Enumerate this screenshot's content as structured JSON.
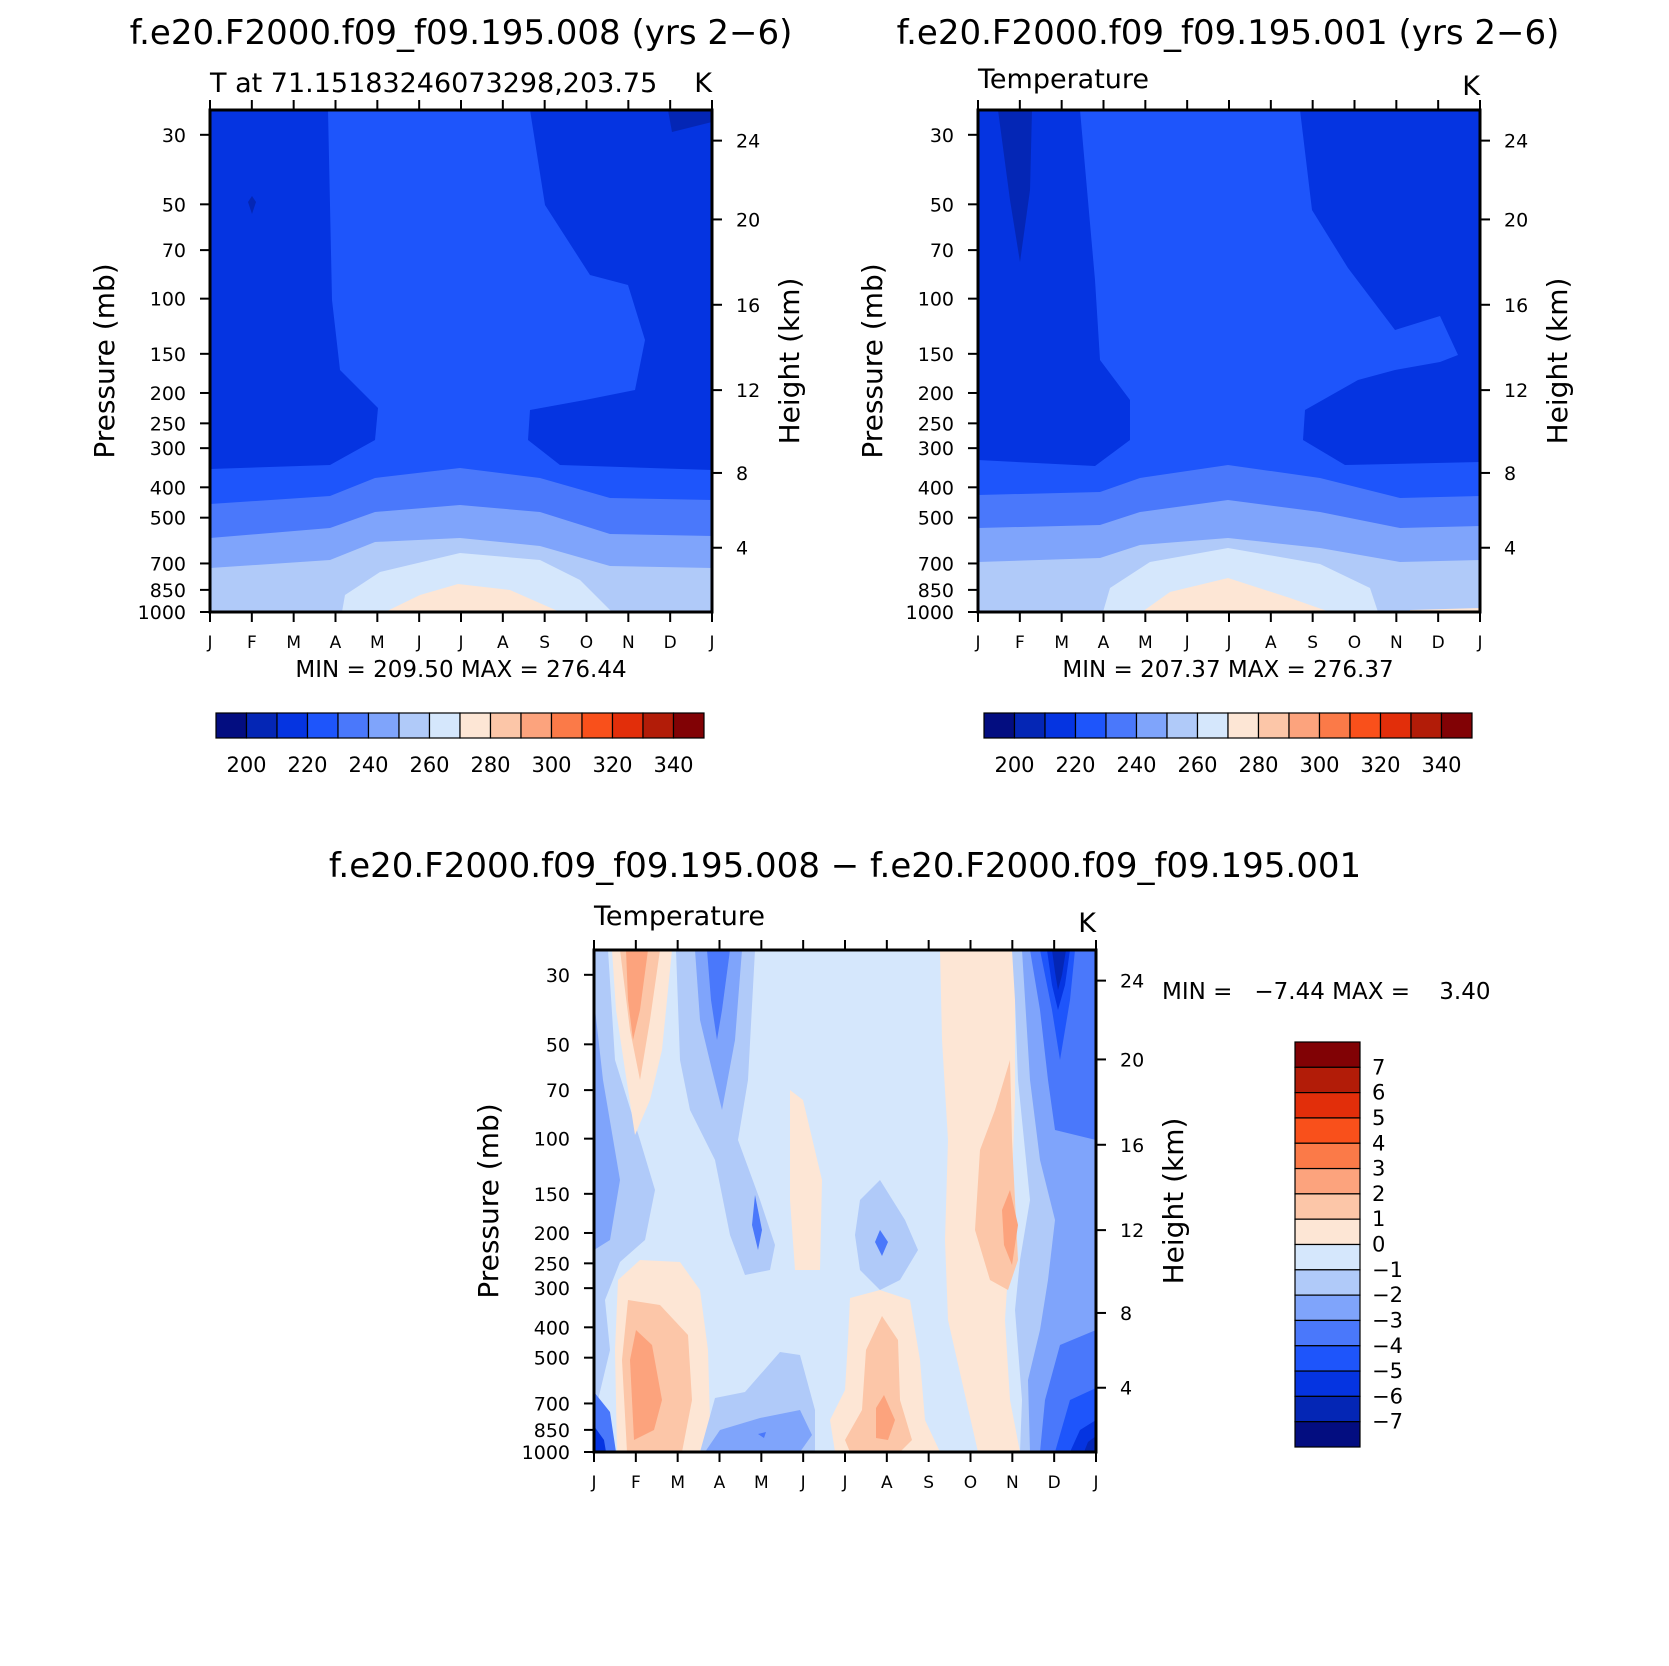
{
  "chart_data": [
    {
      "type": "heatmap",
      "title": "f.e20.F2000.f09_f09.195.008 (yrs 2−6)",
      "left_label": "T at 71.15183246073298,203.75",
      "right_label": "K",
      "ylabel": "Pressure (mb)",
      "y2label": "Height (km)",
      "x_ticks": [
        "J",
        "F",
        "M",
        "A",
        "M",
        "J",
        "J",
        "A",
        "S",
        "O",
        "N",
        "D",
        "J"
      ],
      "pressure_ticks": [
        "30",
        "50",
        "70",
        "100",
        "150",
        "200",
        "250",
        "300",
        "400",
        "500",
        "700",
        "850",
        "1000"
      ],
      "height_ticks": [
        "24",
        "20",
        "16",
        "12",
        "8",
        "4"
      ],
      "stats": "MIN = 209.50 MAX = 276.44",
      "colorbar": {
        "labels": [
          "200",
          "220",
          "240",
          "260",
          "280",
          "300",
          "320",
          "340"
        ],
        "colors": [
          "#030d80",
          "#0426b5",
          "#0534e1",
          "#1e55fb",
          "#4a78fb",
          "#7fa4fb",
          "#b0caf9",
          "#d5e7fc",
          "#fde6d5",
          "#fcc6a8",
          "#fca37d",
          "#fb7a48",
          "#f9501b",
          "#e22e0a",
          "#b21c08",
          "#810205"
        ]
      }
    },
    {
      "type": "heatmap",
      "title": "f.e20.F2000.f09_f09.195.001 (yrs 2−6)",
      "left_label": "Temperature",
      "right_label": "K",
      "ylabel": "Pressure (mb)",
      "y2label": "Height (km)",
      "x_ticks": [
        "J",
        "F",
        "M",
        "A",
        "M",
        "J",
        "J",
        "A",
        "S",
        "O",
        "N",
        "D",
        "J"
      ],
      "pressure_ticks": [
        "30",
        "50",
        "70",
        "100",
        "150",
        "200",
        "250",
        "300",
        "400",
        "500",
        "700",
        "850",
        "1000"
      ],
      "height_ticks": [
        "24",
        "20",
        "16",
        "12",
        "8",
        "4"
      ],
      "stats": "MIN = 207.37 MAX = 276.37",
      "colorbar": {
        "labels": [
          "200",
          "220",
          "240",
          "260",
          "280",
          "300",
          "320",
          "340"
        ],
        "colors": [
          "#030d80",
          "#0426b5",
          "#0534e1",
          "#1e55fb",
          "#4a78fb",
          "#7fa4fb",
          "#b0caf9",
          "#d5e7fc",
          "#fde6d5",
          "#fcc6a8",
          "#fca37d",
          "#fb7a48",
          "#f9501b",
          "#e22e0a",
          "#b21c08",
          "#810205"
        ]
      }
    },
    {
      "type": "heatmap",
      "title": "f.e20.F2000.f09_f09.195.008 − f.e20.F2000.f09_f09.195.001",
      "left_label": "Temperature",
      "right_label": "K",
      "ylabel": "Pressure (mb)",
      "y2label": "Height (km)",
      "x_ticks": [
        "J",
        "F",
        "M",
        "A",
        "M",
        "J",
        "J",
        "A",
        "S",
        "O",
        "N",
        "D",
        "J"
      ],
      "pressure_ticks": [
        "30",
        "50",
        "70",
        "100",
        "150",
        "200",
        "250",
        "300",
        "400",
        "500",
        "700",
        "850",
        "1000"
      ],
      "height_ticks": [
        "24",
        "20",
        "16",
        "12",
        "8",
        "4"
      ],
      "stats": "MIN =   −7.44 MAX =    3.40",
      "colorbar": {
        "labels": [
          "7",
          "6",
          "5",
          "4",
          "3",
          "2",
          "1",
          "0",
          "−1",
          "−2",
          "−3",
          "−4",
          "−5",
          "−6",
          "−7"
        ],
        "colors": [
          "#810205",
          "#b21c08",
          "#e22e0a",
          "#f9501b",
          "#fb7a48",
          "#fca37d",
          "#fcc6a8",
          "#fde6d5",
          "#d5e7fc",
          "#b0caf9",
          "#7fa4fb",
          "#4a78fb",
          "#1e55fb",
          "#0534e1",
          "#0426b5",
          "#030d80"
        ]
      }
    }
  ]
}
